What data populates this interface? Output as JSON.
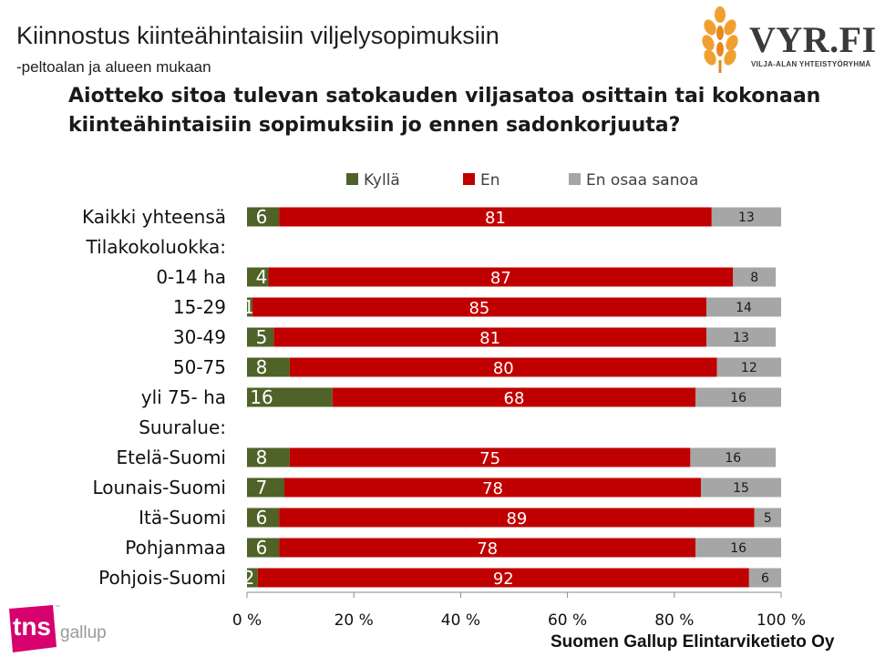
{
  "title": "Kiinnostus kiinteähintaisiin viljelysopimuksiin",
  "subtitle": "-peltoalan ja alueen mukaan",
  "question_line1": "Aiotteko sitoa tulevan satokauden viljasatoa osittain tai kokonaan",
  "question_line2": "kiinteähintaisiin sopimuksiin jo ennen sadonkorjuuta?",
  "logo": {
    "name": "VYR.FI",
    "tagline": "VILJA-ALAN YHTEISTYÖRYHMÄ",
    "icon": "wheat-icon"
  },
  "tns_logo": {
    "word": "tns",
    "gallup": "gallup",
    "tm": "™"
  },
  "footer": "Suomen Gallup Elintarviketieto Oy",
  "colors": {
    "kylla": "#4f6228",
    "en": "#c00000",
    "eos": "#a6a6a6"
  },
  "chart_data": {
    "type": "bar",
    "orientation": "horizontal",
    "stacked": true,
    "legend_position": "top",
    "xlim": [
      0,
      100
    ],
    "x_ticks": [
      "0 %",
      "20 %",
      "40 %",
      "60 %",
      "80 %",
      "100 %"
    ],
    "categories": [
      "Kaikki yhteensä",
      "Tilakokoluokka:",
      "0-14 ha",
      "15-29",
      "30-49",
      "50-75",
      "yli 75- ha",
      "Suuralue:",
      "Etelä-Suomi",
      "Lounais-Suomi",
      "Itä-Suomi",
      "Pohjanmaa",
      "Pohjois-Suomi"
    ],
    "series": [
      {
        "name": "Kyllä",
        "color": "#4f6228",
        "values": [
          6,
          null,
          4,
          1,
          5,
          8,
          16,
          null,
          8,
          7,
          6,
          6,
          2
        ]
      },
      {
        "name": "En",
        "color": "#c00000",
        "values": [
          81,
          null,
          87,
          85,
          81,
          80,
          68,
          null,
          75,
          78,
          89,
          78,
          92
        ]
      },
      {
        "name": "En osaa sanoa",
        "color": "#a6a6a6",
        "values": [
          13,
          null,
          8,
          14,
          13,
          12,
          16,
          null,
          16,
          15,
          5,
          16,
          6
        ]
      }
    ]
  }
}
